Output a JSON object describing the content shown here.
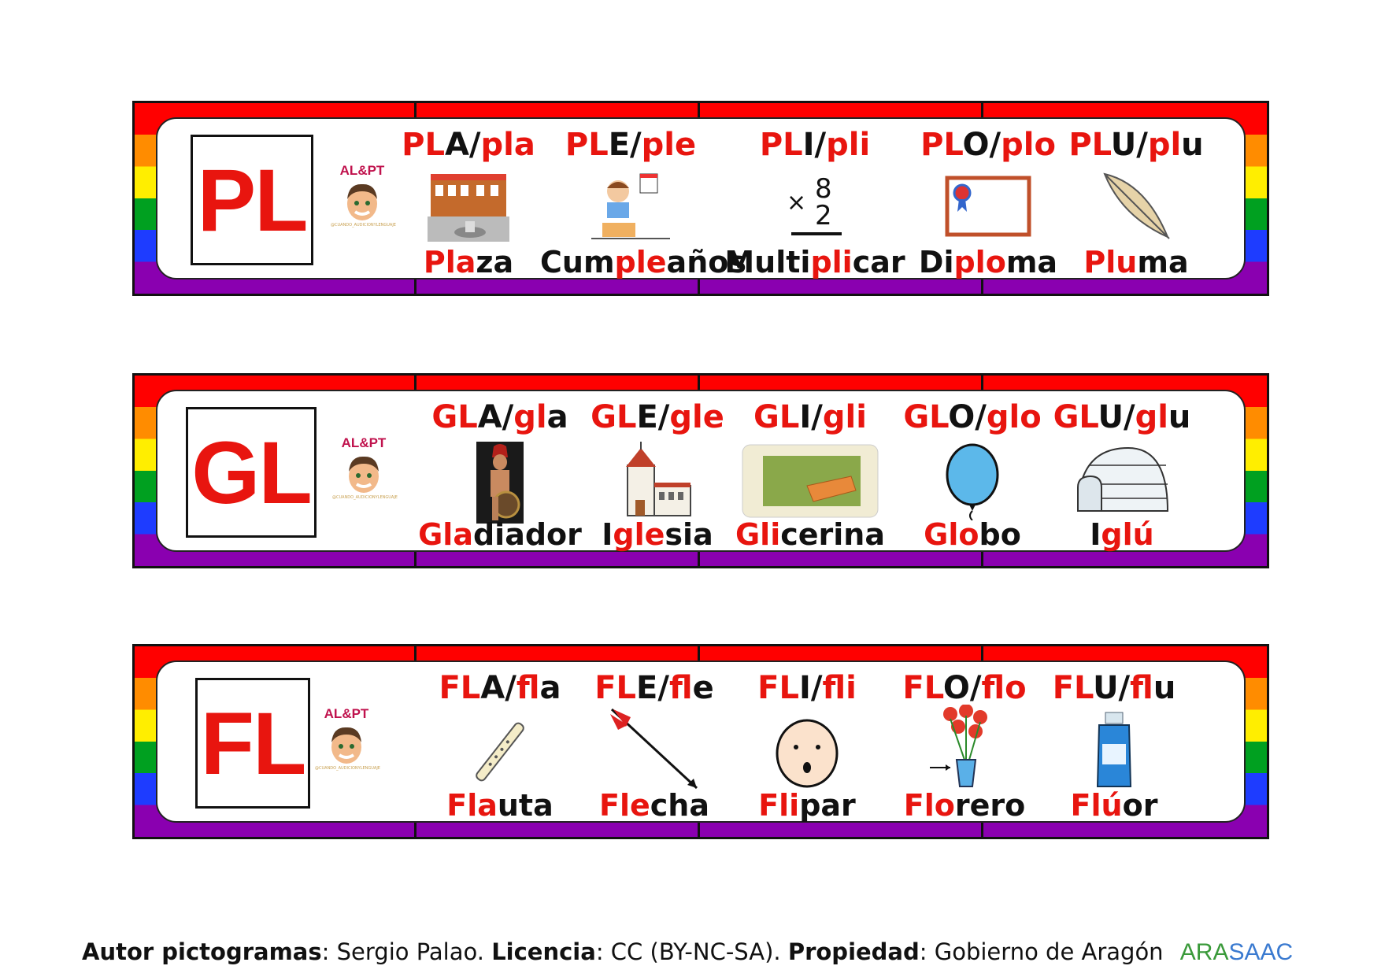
{
  "logo": {
    "label": "AL&PT",
    "tiny": "@CUANDO_AUDICIONYLENGUAJE"
  },
  "strips": [
    {
      "letters": "PL",
      "items": [
        {
          "syl_red": "PL",
          "syl_black": "A/",
          "syl_red2": "pla",
          "syl_black2": "",
          "word": [
            {
              "t": "Pla",
              "c": "r"
            },
            {
              "t": "za",
              "c": "k"
            }
          ],
          "icon": "plaza-icon"
        },
        {
          "syl_red": "PL",
          "syl_black": "E/",
          "syl_red2": "ple",
          "syl_black2": "",
          "word": [
            {
              "t": "Cum",
              "c": "k"
            },
            {
              "t": "ple",
              "c": "r"
            },
            {
              "t": "años",
              "c": "k"
            }
          ],
          "icon": "birthday-icon"
        },
        {
          "syl_red": "PL",
          "syl_black": "I/",
          "syl_red2": "pli",
          "syl_black2": "",
          "word": [
            {
              "t": "Multi",
              "c": "k"
            },
            {
              "t": "pli",
              "c": "r"
            },
            {
              "t": "car",
              "c": "k"
            }
          ],
          "icon": "multiply-icon"
        },
        {
          "syl_red": "PL",
          "syl_black": "O/",
          "syl_red2": "plo",
          "syl_black2": "",
          "word": [
            {
              "t": "Di",
              "c": "k"
            },
            {
              "t": "plo",
              "c": "r"
            },
            {
              "t": "ma",
              "c": "k"
            }
          ],
          "icon": "diploma-icon"
        },
        {
          "syl_red": "PL",
          "syl_black": "U/",
          "syl_red2": "pl",
          "syl_black2": "u",
          "word": [
            {
              "t": "Plu",
              "c": "r"
            },
            {
              "t": "ma",
              "c": "k"
            }
          ],
          "icon": "feather-icon"
        }
      ]
    },
    {
      "letters": "GL",
      "items": [
        {
          "syl_red": "GL",
          "syl_black": "A/",
          "syl_red2": "gl",
          "syl_black2": "a",
          "word": [
            {
              "t": "Gla",
              "c": "r"
            },
            {
              "t": "diador",
              "c": "k"
            }
          ],
          "icon": "gladiator-icon"
        },
        {
          "syl_red": "GL",
          "syl_black": "E/",
          "syl_red2": "gle",
          "syl_black2": "",
          "word": [
            {
              "t": "I",
              "c": "k"
            },
            {
              "t": "gle",
              "c": "r"
            },
            {
              "t": "sia",
              "c": "k"
            }
          ],
          "icon": "church-icon"
        },
        {
          "syl_red": "GL",
          "syl_black": "I/",
          "syl_red2": "gli",
          "syl_black2": "",
          "word": [
            {
              "t": "Gli",
              "c": "r"
            },
            {
              "t": "cerina",
              "c": "k"
            }
          ],
          "icon": "soap-icon"
        },
        {
          "syl_red": "GL",
          "syl_black": "O/",
          "syl_red2": "glo",
          "syl_black2": "",
          "word": [
            {
              "t": "Glo",
              "c": "r"
            },
            {
              "t": "bo",
              "c": "k"
            }
          ],
          "icon": "balloon-icon"
        },
        {
          "syl_red": "GL",
          "syl_black": "U/",
          "syl_red2": "gl",
          "syl_black2": "u",
          "word": [
            {
              "t": "I",
              "c": "k"
            },
            {
              "t": "glú",
              "c": "r"
            }
          ],
          "icon": "igloo-icon"
        }
      ]
    },
    {
      "letters": "FL",
      "items": [
        {
          "syl_red": "FL",
          "syl_black": "A/",
          "syl_red2": "fl",
          "syl_black2": "a",
          "word": [
            {
              "t": "Fla",
              "c": "r"
            },
            {
              "t": "uta",
              "c": "k"
            }
          ],
          "icon": "flute-icon"
        },
        {
          "syl_red": "FL",
          "syl_black": "E/",
          "syl_red2": "fl",
          "syl_black2": "e",
          "word": [
            {
              "t": "Fle",
              "c": "r"
            },
            {
              "t": "cha",
              "c": "k"
            }
          ],
          "icon": "arrow-icon"
        },
        {
          "syl_red": "FL",
          "syl_black": "I/",
          "syl_red2": "fli",
          "syl_black2": "",
          "word": [
            {
              "t": "Fli",
              "c": "r"
            },
            {
              "t": "par",
              "c": "k"
            }
          ],
          "icon": "amazed-face-icon"
        },
        {
          "syl_red": "FL",
          "syl_black": "O/",
          "syl_red2": "flo",
          "syl_black2": "",
          "word": [
            {
              "t": "Flo",
              "c": "r"
            },
            {
              "t": "rero",
              "c": "k"
            }
          ],
          "icon": "vase-icon"
        },
        {
          "syl_red": "FL",
          "syl_black": "U/",
          "syl_red2": "fl",
          "syl_black2": "u",
          "word": [
            {
              "t": "Flú",
              "c": "r"
            },
            {
              "t": "or",
              "c": "k"
            }
          ],
          "icon": "mouthwash-icon"
        }
      ]
    }
  ],
  "footer": {
    "author_label": "Autor pictogramas",
    "author_value": ": Sergio Palao. ",
    "license_label": "Licencia",
    "license_value": ": CC (BY-NC-SA). ",
    "property_label": "Propiedad",
    "property_value": ": Gobierno de Aragón",
    "brand_a": "ARA",
    "brand_b": "SAAC"
  },
  "colors": {
    "red": "#e8150f",
    "black": "#111111"
  }
}
